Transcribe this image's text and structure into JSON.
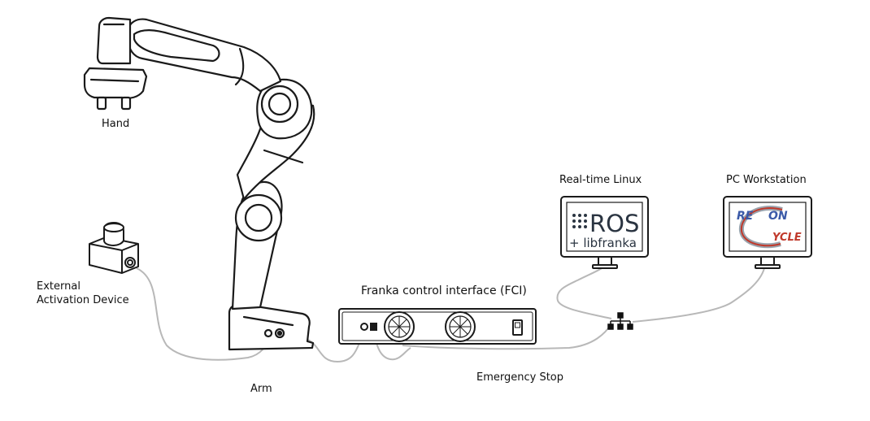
{
  "labels": {
    "hand": "Hand",
    "arm": "Arm",
    "external_activation_line1": "External",
    "external_activation_line2": "Activation Device",
    "fci": "Franka control interface (FCI)",
    "emergency_stop": "Emergency Stop",
    "realtime_linux": "Real-time Linux",
    "pc_workstation": "PC Workstation"
  },
  "monitor_ros": {
    "line1": "ROS",
    "line2": "+ libfranka"
  },
  "monitor_pc": {
    "logo_line1a": "RE",
    "logo_line1b": "ON",
    "logo_line2": "YCLE"
  },
  "colors": {
    "outline": "#1a1a1a",
    "cable": "#b8b8b8",
    "ros_text": "#2a3441",
    "logo_blue": "#3b5aa8",
    "logo_red": "#c0392b",
    "logo_gray": "#9aa3ad"
  }
}
